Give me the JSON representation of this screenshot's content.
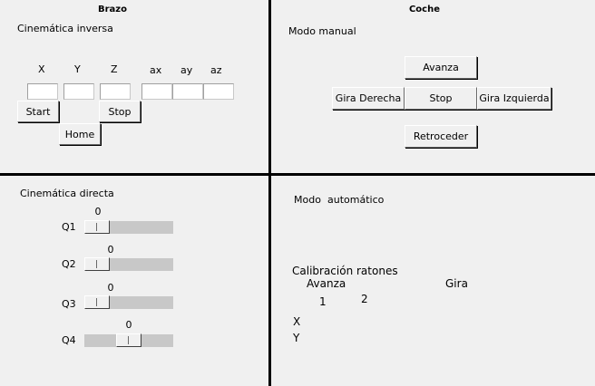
{
  "brazo": {
    "title": "Brazo",
    "inversa": {
      "title": "Cinemática inversa",
      "fields": [
        {
          "label": "X",
          "value": ""
        },
        {
          "label": "Y",
          "value": ""
        },
        {
          "label": "Z",
          "value": ""
        },
        {
          "label": "ax",
          "value": ""
        },
        {
          "label": "ay",
          "value": ""
        },
        {
          "label": "az",
          "value": ""
        }
      ],
      "start_label": "Start",
      "stop_label": "Stop",
      "home_label": "Home"
    },
    "directa": {
      "title": "Cinemática directa",
      "sliders": [
        {
          "label": "Q1",
          "value": "0",
          "position": 0.0
        },
        {
          "label": "Q2",
          "value": "0",
          "position": 0.0
        },
        {
          "label": "Q3",
          "value": "0",
          "position": 0.0
        },
        {
          "label": "Q4",
          "value": "0",
          "position": 0.5
        }
      ]
    }
  },
  "coche": {
    "title": "Coche",
    "manual": {
      "title": "Modo manual",
      "avanza_label": "Avanza",
      "gira_derecha_label": "Gira Derecha",
      "stop_label": "Stop",
      "gira_izquierda_label": "Gira Izquierda",
      "retroceder_label": "Retroceder"
    },
    "automatico": {
      "title_part1": "Modo",
      "title_part2": "automático",
      "calibracion_label": "Calibración ratones",
      "avanza_label": "Avanza",
      "gira_label": "Gira",
      "col1_label": "1",
      "col2_label": "2",
      "x_label": "X",
      "y_label": "Y"
    }
  }
}
